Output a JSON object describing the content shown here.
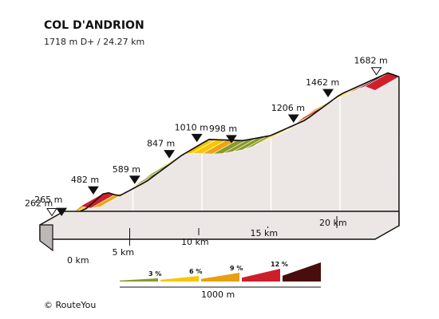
{
  "chart_data": {
    "type": "area",
    "title": "COL D'ANDRION",
    "subtitle": "1718 m D+ / 24.27 km",
    "x_unit": "km",
    "y_unit": "m",
    "xlim": [
      0,
      24.27
    ],
    "profile": [
      {
        "x": 0.0,
        "y": 262
      },
      {
        "x": 0.7,
        "y": 265
      },
      {
        "x": 1.5,
        "y": 300
      },
      {
        "x": 3.0,
        "y": 482
      },
      {
        "x": 4.0,
        "y": 440
      },
      {
        "x": 6.0,
        "y": 589
      },
      {
        "x": 8.5,
        "y": 847
      },
      {
        "x": 10.5,
        "y": 1010
      },
      {
        "x": 13.0,
        "y": 998
      },
      {
        "x": 15.0,
        "y": 1050
      },
      {
        "x": 17.5,
        "y": 1206
      },
      {
        "x": 20.0,
        "y": 1462
      },
      {
        "x": 23.5,
        "y": 1682
      },
      {
        "x": 24.27,
        "y": 1640
      }
    ],
    "segment_gradients": [
      2,
      4,
      5,
      7,
      9,
      7,
      2,
      4,
      6,
      4,
      3,
      5,
      7,
      9,
      5,
      6,
      7,
      3,
      2,
      2,
      3,
      5,
      6,
      6,
      5,
      9,
      7,
      6,
      5,
      6,
      11,
      12,
      9
    ],
    "peaks": [
      {
        "x": 0.0,
        "label": "262 m",
        "marker": "open"
      },
      {
        "x": 0.7,
        "label": "265 m",
        "marker": "filled"
      },
      {
        "x": 3.0,
        "label": "482 m",
        "marker": "filled"
      },
      {
        "x": 6.0,
        "label": "589 m",
        "marker": "filled"
      },
      {
        "x": 8.5,
        "label": "847 m",
        "marker": "filled"
      },
      {
        "x": 10.5,
        "label": "1010 m",
        "marker": "filled"
      },
      {
        "x": 13.0,
        "label": "998 m",
        "marker": "filled"
      },
      {
        "x": 17.5,
        "label": "1206 m",
        "marker": "filled"
      },
      {
        "x": 20.0,
        "label": "1462 m",
        "marker": "filled"
      },
      {
        "x": 23.5,
        "label": "1682 m",
        "marker": "open"
      }
    ],
    "x_ticks": [
      {
        "x": 0,
        "label": "0 km"
      },
      {
        "x": 5,
        "label": "5 km"
      },
      {
        "x": 10,
        "label": "10 km"
      },
      {
        "x": 15,
        "label": "15 km"
      },
      {
        "x": 20,
        "label": "20 km"
      }
    ],
    "legend": {
      "items": [
        {
          "label": "3 %",
          "color": "#8a9a2a"
        },
        {
          "label": "6 %",
          "color": "#f7c800"
        },
        {
          "label": "9 %",
          "color": "#e8a010"
        },
        {
          "label": "12 %",
          "color": "#cc1f2b"
        },
        {
          "label": "",
          "color": "#4a0d0d"
        }
      ],
      "scale_label": "1000 m"
    }
  },
  "colors": {
    "g3": "#8a9a2a",
    "g6": "#f7c800",
    "g9": "#eea511",
    "g12": "#cf1f2b",
    "g15": "#520b0b",
    "side": "#ece6e4",
    "edge": "#111111"
  },
  "footer": {
    "copyright": "© RouteYou"
  }
}
